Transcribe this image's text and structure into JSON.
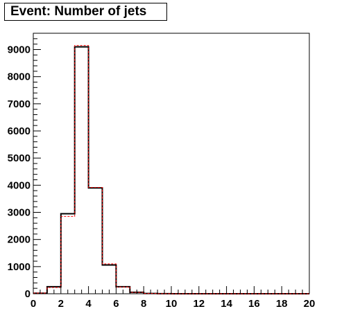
{
  "chart_data": {
    "type": "bar",
    "title": "Event: Number of jets",
    "xlabel": "",
    "ylabel": "",
    "bin_edges": [
      0,
      1,
      2,
      3,
      4,
      5,
      6,
      7,
      8,
      9,
      10,
      11,
      12,
      13,
      14,
      15,
      16,
      17,
      18,
      19,
      20
    ],
    "xlim": [
      0,
      20
    ],
    "ylim": [
      0,
      9600
    ],
    "x_ticks": [
      "0",
      "2",
      "4",
      "6",
      "8",
      "10",
      "12",
      "14",
      "16",
      "18",
      "20"
    ],
    "y_ticks": [
      "0",
      "1000",
      "2000",
      "3000",
      "4000",
      "5000",
      "6000",
      "7000",
      "8000",
      "9000"
    ],
    "grid": false,
    "series": [
      {
        "style": "solid",
        "color": "#000000",
        "values": [
          20,
          260,
          2950,
          9100,
          3900,
          1060,
          260,
          55,
          10,
          3,
          1,
          0,
          0,
          0,
          0,
          0,
          0,
          0,
          0,
          0
        ]
      },
      {
        "style": "dashed",
        "color": "#ff0000",
        "values": [
          25,
          230,
          2850,
          9150,
          3920,
          1100,
          250,
          50,
          9,
          3,
          1,
          0,
          0,
          0,
          0,
          0,
          0,
          0,
          0,
          0
        ]
      }
    ]
  }
}
